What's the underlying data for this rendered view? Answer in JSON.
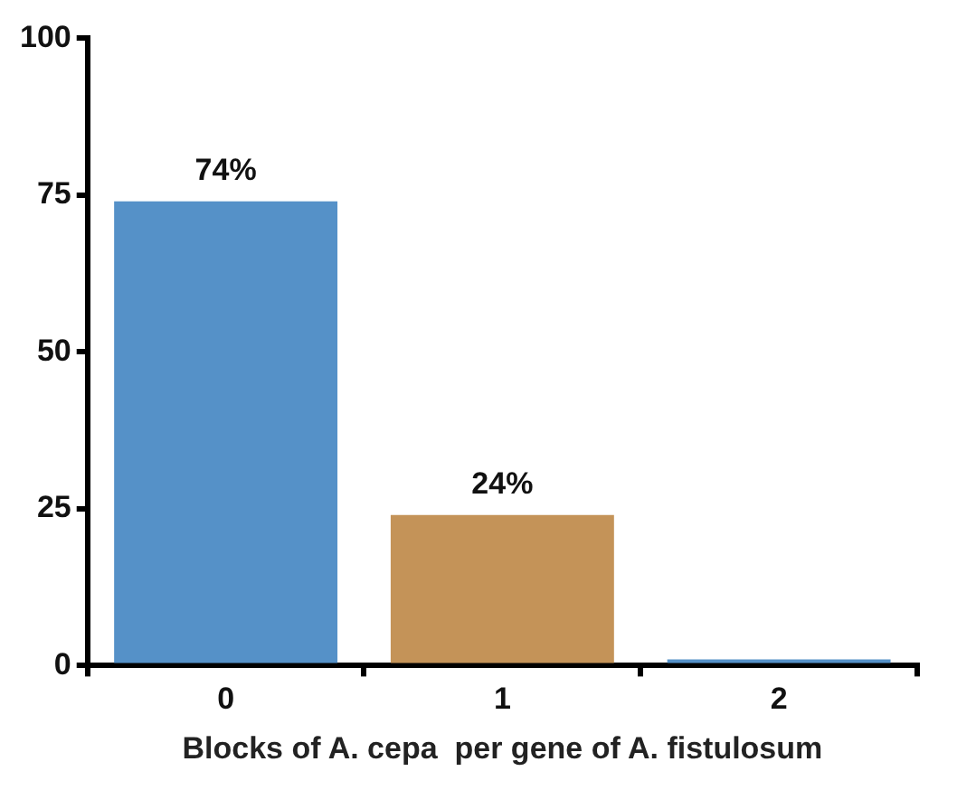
{
  "chart_data": {
    "type": "bar",
    "xlabel": "Blocks of A. cepa  per gene of A. fistulosum",
    "categories": [
      "0",
      "1",
      "2"
    ],
    "values": [
      74,
      24,
      1
    ],
    "colors": [
      "#5591c8",
      "#c49358",
      "#5591c8"
    ],
    "value_labels": [
      "74%",
      "24%",
      null
    ],
    "ylim": [
      0,
      100
    ],
    "yticks": [
      0,
      25,
      50,
      75,
      100
    ],
    "grid": false,
    "legend": false
  }
}
